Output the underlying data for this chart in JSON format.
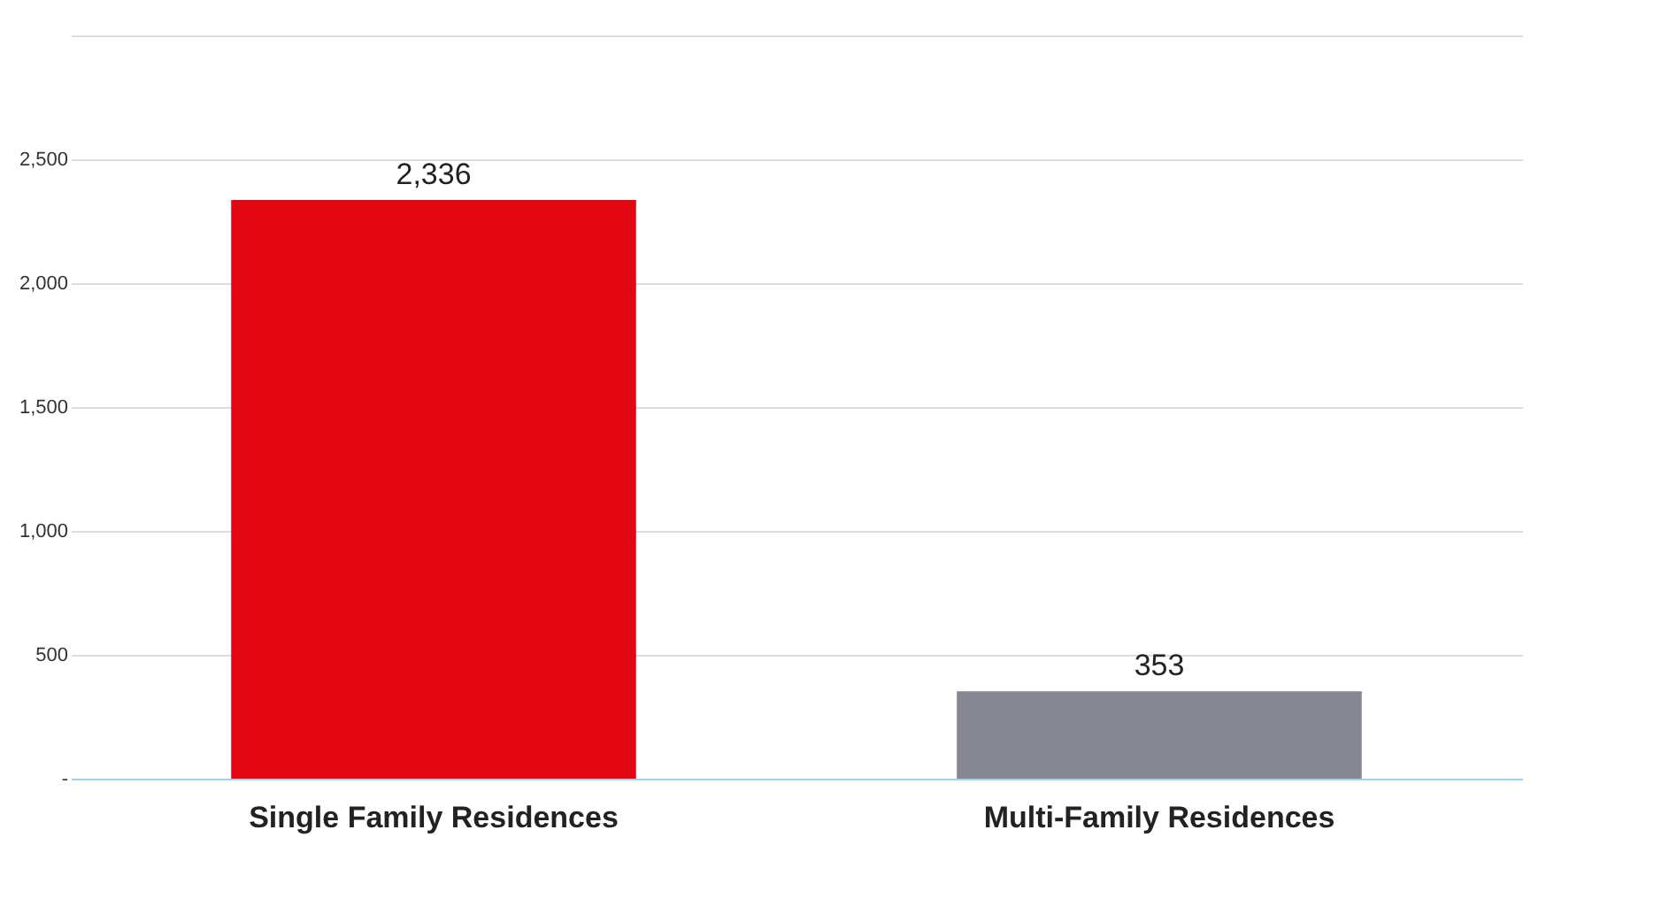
{
  "chart_data": {
    "type": "bar",
    "categories": [
      "Single Family Residences",
      "Multi-Family Residences"
    ],
    "values": [
      2336,
      353
    ],
    "colors": [
      "#e30613",
      "#858892"
    ],
    "value_labels": [
      "2,336",
      "353"
    ],
    "ylim": [
      0,
      3000
    ],
    "yticks": [
      {
        "value": 0,
        "label": "-"
      },
      {
        "value": 500,
        "label": "500"
      },
      {
        "value": 1000,
        "label": "1,000"
      },
      {
        "value": 1500,
        "label": "1,500"
      },
      {
        "value": 2000,
        "label": "2,000"
      },
      {
        "value": 2500,
        "label": "2,500"
      },
      {
        "value": 3000,
        "label": null
      }
    ],
    "grid": true
  }
}
